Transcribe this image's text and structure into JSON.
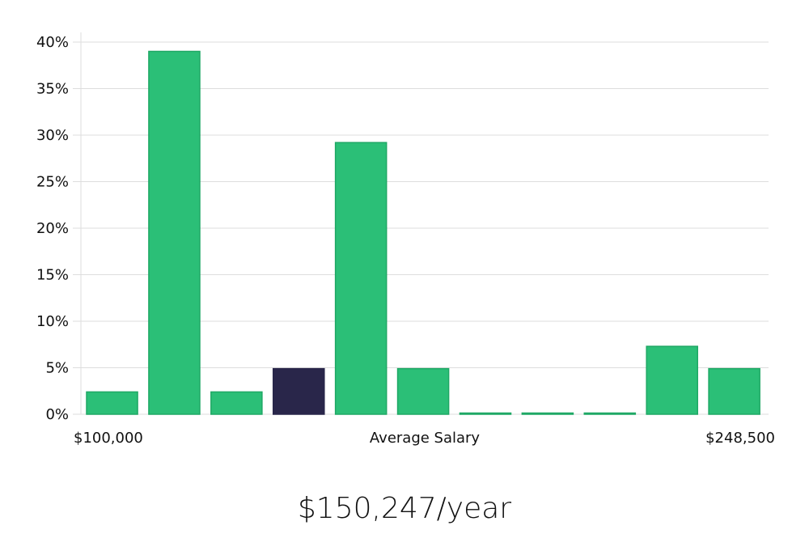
{
  "chart_data": {
    "type": "bar",
    "title": "",
    "xlabel": "Average Salary",
    "ylabel": "",
    "x_start_label": "$100,000",
    "x_end_label": "$248,500",
    "ylim": [
      0,
      40
    ],
    "y_ticks": [
      "0%",
      "5%",
      "10%",
      "15%",
      "20%",
      "25%",
      "30%",
      "35%",
      "40%"
    ],
    "y_tick_values": [
      0,
      5,
      10,
      15,
      20,
      25,
      30,
      35,
      40
    ],
    "grid": true,
    "values": [
      2.4,
      39.0,
      2.4,
      4.9,
      29.2,
      4.9,
      0,
      0,
      0,
      7.3,
      4.9
    ],
    "highlight_index": 3,
    "bar_color": "#2bbf77",
    "bar_edge_color": "#1fa865",
    "highlight_color": "#29264a",
    "grid_color": "#dddddd"
  },
  "summary": {
    "average_salary": "$150,247/year"
  }
}
